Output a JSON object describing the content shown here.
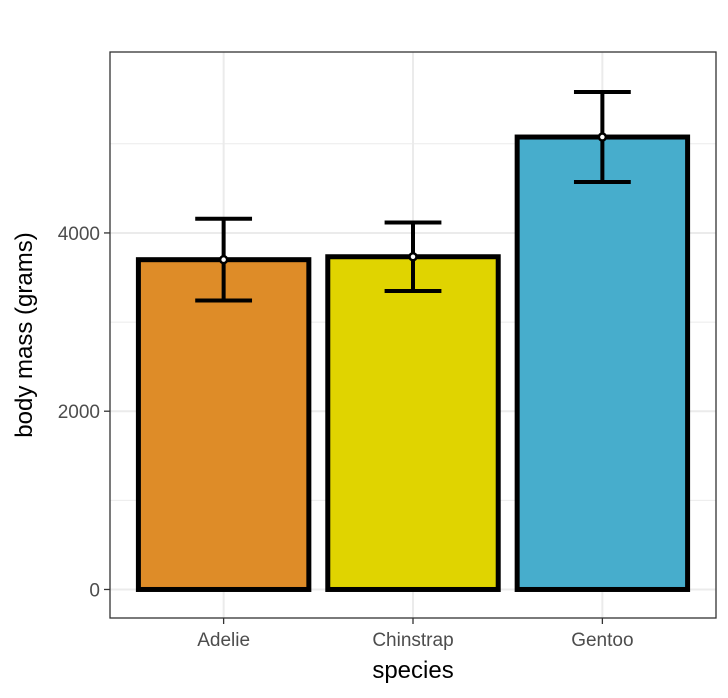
{
  "chart_data": {
    "type": "bar",
    "title": "",
    "xlabel": "species",
    "ylabel": "body mass (grams)",
    "categories": [
      "Adelie",
      "Chinstrap",
      "Gentoo"
    ],
    "values": [
      3700,
      3733,
      5076
    ],
    "error_low": [
      3242,
      3349,
      4571
    ],
    "error_high": [
      4159,
      4117,
      5581
    ],
    "bar_colors": [
      "#DE8C28",
      "#E0D400",
      "#47ADCC"
    ],
    "ylim": [
      -320,
      6030
    ],
    "yticks": [
      0,
      2000,
      4000
    ],
    "ytick_labels": [
      "0",
      "2000",
      "4000"
    ],
    "grid": true,
    "legend": "none"
  }
}
